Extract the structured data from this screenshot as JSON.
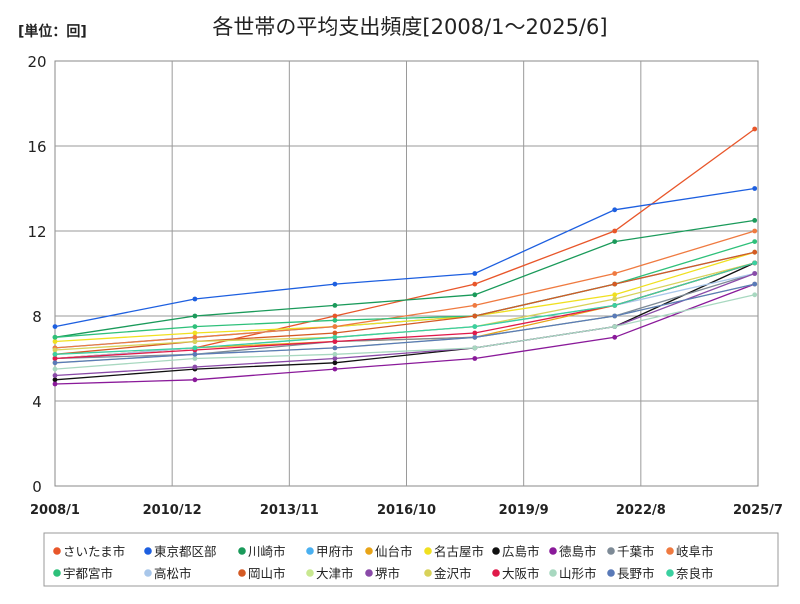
{
  "chart_data": {
    "type": "line",
    "title": "各世帯の平均支出頻度[2008/1～2025/6]",
    "unit_label": "[単位：回]",
    "x_start": "2008-01",
    "x_end": "2025-06",
    "xlim": [
      "2008-01",
      "2025-07"
    ],
    "x_ticks": [
      "2008/1",
      "2010/12",
      "2013/11",
      "2016/10",
      "2019/9",
      "2022/8",
      "2025/7"
    ],
    "ylim": [
      0,
      20
    ],
    "y_ticks": [
      "0",
      "4",
      "8",
      "12",
      "16",
      "20"
    ],
    "grid": true,
    "legend_position": "bottom",
    "series_style": "line-with-markers",
    "series": [
      {
        "name": "さいたま市",
        "color": "#e8562a",
        "values": [
          6.0,
          6.5,
          8.0,
          9.5,
          12.0,
          16.8
        ]
      },
      {
        "name": "東京都区部",
        "color": "#1d5fe0",
        "values": [
          7.5,
          8.8,
          9.5,
          10.0,
          13.0,
          14.0
        ]
      },
      {
        "name": "川崎市",
        "color": "#1a9a5a",
        "values": [
          7.0,
          8.0,
          8.5,
          9.0,
          11.5,
          12.5
        ]
      },
      {
        "name": "甲府市",
        "color": "#4ab0f0",
        "values": [
          6.5,
          7.0,
          7.5,
          8.0,
          9.5,
          11.0
        ]
      },
      {
        "name": "仙台市",
        "color": "#e8a417",
        "values": [
          6.0,
          6.5,
          6.8,
          7.0,
          8.5,
          10.5
        ]
      },
      {
        "name": "名古屋市",
        "color": "#f0e020",
        "values": [
          6.8,
          7.2,
          7.5,
          8.0,
          9.0,
          11.0
        ]
      },
      {
        "name": "広島市",
        "color": "#111111",
        "values": [
          5.0,
          5.5,
          5.8,
          6.5,
          7.5,
          10.5
        ]
      },
      {
        "name": "徳島市",
        "color": "#8a1a9a",
        "values": [
          4.8,
          5.0,
          5.5,
          6.0,
          7.0,
          9.5
        ]
      },
      {
        "name": "千葉市",
        "color": "#7d8a96",
        "values": [
          6.0,
          6.2,
          6.8,
          7.0,
          8.0,
          10.0
        ]
      },
      {
        "name": "岐阜市",
        "color": "#ef7a40",
        "values": [
          6.5,
          7.0,
          7.5,
          8.5,
          10.0,
          12.0
        ]
      },
      {
        "name": "宇都宮市",
        "color": "#2ec07a",
        "values": [
          7.0,
          7.5,
          7.8,
          8.0,
          9.5,
          11.5
        ]
      },
      {
        "name": "高松市",
        "color": "#a9c7ea",
        "values": [
          6.0,
          6.5,
          7.0,
          7.5,
          8.5,
          10.0
        ]
      },
      {
        "name": "岡山市",
        "color": "#d45a24",
        "values": [
          6.2,
          6.8,
          7.2,
          8.0,
          9.5,
          11.0
        ]
      },
      {
        "name": "大津市",
        "color": "#c8e890",
        "values": [
          5.8,
          6.2,
          6.5,
          7.0,
          8.0,
          9.5
        ]
      },
      {
        "name": "堺市",
        "color": "#8a4aa8",
        "values": [
          5.2,
          5.6,
          6.0,
          6.5,
          7.5,
          10.0
        ]
      },
      {
        "name": "金沢市",
        "color": "#d8d25a",
        "values": [
          6.4,
          6.8,
          7.0,
          7.5,
          8.8,
          10.5
        ]
      },
      {
        "name": "大阪市",
        "color": "#e01a4a",
        "values": [
          6.0,
          6.4,
          6.8,
          7.2,
          8.5,
          10.5
        ]
      },
      {
        "name": "山形市",
        "color": "#a8d8c0",
        "values": [
          5.5,
          6.0,
          6.2,
          6.5,
          7.5,
          9.0
        ]
      },
      {
        "name": "長野市",
        "color": "#5a7ab8",
        "values": [
          5.8,
          6.2,
          6.5,
          7.0,
          8.0,
          9.5
        ]
      },
      {
        "name": "奈良市",
        "color": "#3ad0a0",
        "values": [
          6.2,
          6.5,
          7.0,
          7.5,
          8.5,
          10.5
        ]
      }
    ]
  }
}
